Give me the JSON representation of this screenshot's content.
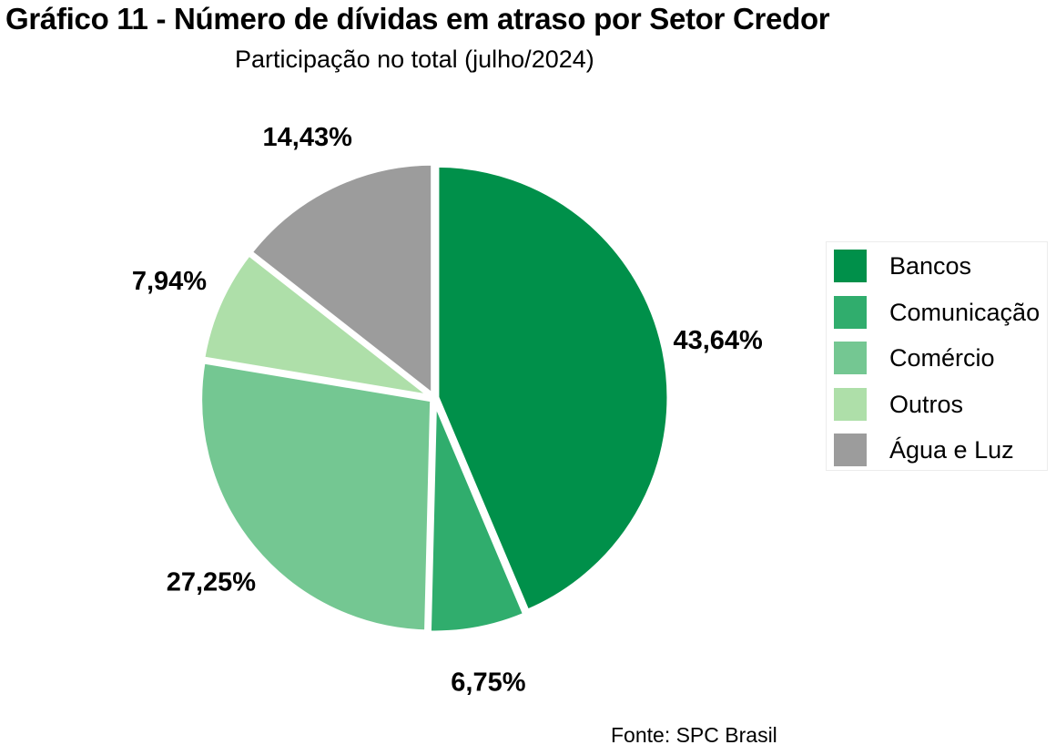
{
  "chart_data": {
    "type": "pie",
    "title": "Gráfico 11 - Número de dívidas em atraso por Setor Credor",
    "subtitle": "Participação no total (julho/2024)",
    "source": "Fonte: SPC Brasil",
    "legend_position": "right",
    "slices": [
      {
        "label": "Bancos",
        "value": 43.64,
        "value_label": "43,64%",
        "color": "#00904a"
      },
      {
        "label": "Comunicação",
        "value": 6.75,
        "value_label": "6,75%",
        "color": "#30ad6d"
      },
      {
        "label": "Comércio",
        "value": 27.25,
        "value_label": "27,25%",
        "color": "#74c792"
      },
      {
        "label": "Outros",
        "value": 7.94,
        "value_label": "7,94%",
        "color": "#aedfa9"
      },
      {
        "label": "Água e Luz",
        "value": 14.43,
        "value_label": "14,43%",
        "color": "#9c9c9c"
      }
    ]
  }
}
